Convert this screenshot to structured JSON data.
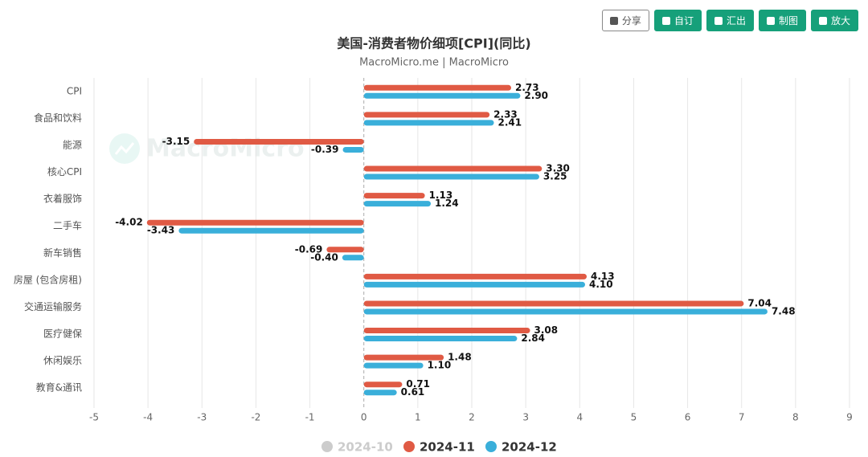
{
  "toolbar": [
    "分享",
    "自订",
    "汇出",
    "制图",
    "放大"
  ],
  "watermark": "MacroMicro",
  "chart_data": {
    "type": "hbar",
    "title": "美国-消费者物价细项[CPI](同比)",
    "subtitle": "MacroMicro.me | MacroMicro",
    "categories": [
      "CPI",
      "食品和饮料",
      "能源",
      "核心CPI",
      "衣着服饰",
      "二手车",
      "新车销售",
      "房屋 (包含房租)",
      "交通运输服务",
      "医疗健保",
      "休闲娱乐",
      "教育&通讯"
    ],
    "series": [
      {
        "name": "2024-10",
        "color": "#cccccc",
        "visible": false,
        "values": [
          null,
          null,
          null,
          null,
          null,
          null,
          null,
          null,
          null,
          null,
          null,
          null
        ]
      },
      {
        "name": "2024-11",
        "color": "#e05a44",
        "visible": true,
        "values": [
          2.73,
          2.33,
          -3.15,
          3.3,
          1.13,
          -4.02,
          -0.69,
          4.13,
          7.04,
          3.08,
          1.48,
          0.71
        ],
        "value_labels": [
          "2.73",
          "2.33",
          "-3.15",
          "3.30",
          "1.13",
          "-4.02",
          "-0.69",
          "4.13",
          "7.04",
          "3.08",
          "1.48",
          "0.71"
        ]
      },
      {
        "name": "2024-12",
        "color": "#3aafda",
        "visible": true,
        "values": [
          2.9,
          2.41,
          -0.39,
          3.25,
          1.24,
          -3.43,
          -0.4,
          4.1,
          7.48,
          2.84,
          1.1,
          0.61
        ],
        "value_labels": [
          "2.90",
          "2.41",
          "-0.39",
          "3.25",
          "1.24",
          "-3.43",
          "-0.40",
          "4.10",
          "7.48",
          "2.84",
          "1.10",
          "0.61"
        ]
      }
    ],
    "xlim": [
      -5,
      9
    ],
    "xticks": [
      -5,
      -4,
      -3,
      -2,
      -1,
      0,
      1,
      2,
      3,
      4,
      5,
      6,
      7,
      8,
      9
    ],
    "grid": true
  }
}
